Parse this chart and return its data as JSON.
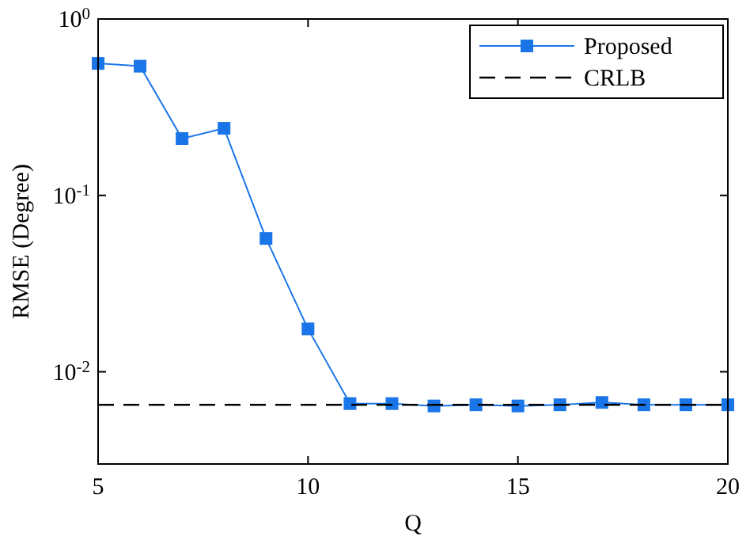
{
  "chart_data": {
    "type": "line",
    "xlabel": "Q",
    "ylabel": "RMSE (Degree)",
    "log": "y",
    "grid": false,
    "legend": "top right",
    "marker": "square",
    "x": [
      5,
      6,
      7,
      8,
      9,
      10,
      11,
      12,
      13,
      14,
      15,
      16,
      17,
      18,
      19,
      20
    ],
    "series": [
      {
        "name": "Proposed",
        "color": "#1a75e8",
        "line_style": "solid",
        "values": [
          0.56,
          0.54,
          0.21,
          0.24,
          0.057,
          0.0175,
          0.0066,
          0.0066,
          0.0064,
          0.0065,
          0.0064,
          0.0065,
          0.0067,
          0.0065,
          0.0065,
          0.0065
        ]
      },
      {
        "name": "CRLB",
        "color": "#000000",
        "line_style": "dashed",
        "marker": "none",
        "values": [
          0.0065,
          0.0065,
          0.0065,
          0.0065,
          0.0065,
          0.0065,
          0.0065,
          0.0065,
          0.0065,
          0.0065,
          0.0065,
          0.0065,
          0.0065,
          0.0065,
          0.0065,
          0.0065
        ]
      }
    ],
    "xlim": [
      5,
      20
    ],
    "ylim": [
      0.003,
      1
    ],
    "xticks": [
      5,
      10,
      15,
      20
    ],
    "yticks": [
      {
        "value": 0.01,
        "label": "10$^{-2}$"
      },
      {
        "value": 0.1,
        "label": "10$^{-1}$"
      },
      {
        "value": 1,
        "label": "10$^{0}$"
      }
    ]
  }
}
